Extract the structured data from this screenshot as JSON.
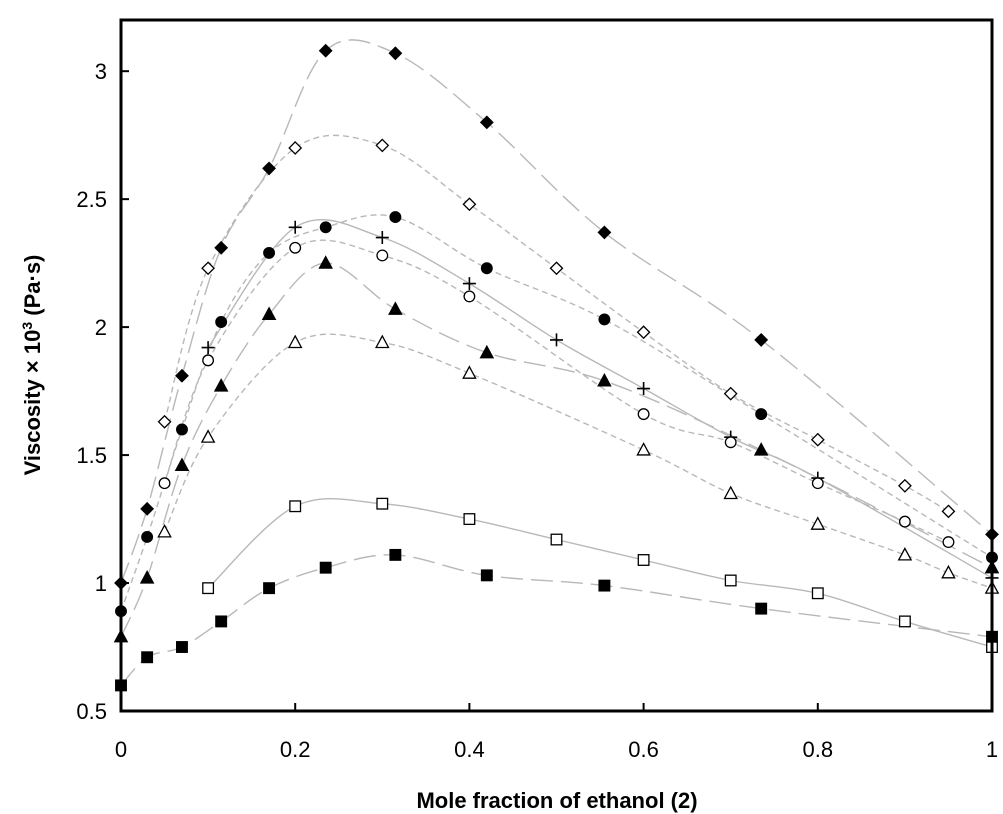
{
  "chart_data": {
    "type": "scatter",
    "title": "",
    "xlabel": "Mole fraction of ethanol (2)",
    "ylabel_main": "Viscosity × 10",
    "ylabel_sup": "3",
    "ylabel_unit": " (Pa·s)",
    "xlim": [
      0,
      1
    ],
    "ylim": [
      0.5,
      3.2
    ],
    "x_ticks": [
      0,
      0.2,
      0.4,
      0.6,
      0.8,
      1
    ],
    "x_tick_labels": [
      "0",
      "0.2",
      "0.4",
      "0.6",
      "0.8",
      "1"
    ],
    "y_ticks": [
      0.5,
      1,
      1.5,
      2,
      2.5,
      3
    ],
    "y_tick_labels": [
      "0.5",
      "1",
      "1.5",
      "2",
      "2.5",
      "3"
    ],
    "grid": false,
    "legend": "none",
    "series": [
      {
        "marker": "filled-diamond",
        "line": "long-dash",
        "x": [
          0,
          0.03,
          0.07,
          0.115,
          0.17,
          0.235,
          0.315,
          0.42,
          0.555,
          0.735,
          1
        ],
        "y": [
          1.0,
          1.29,
          1.81,
          2.31,
          2.62,
          3.08,
          3.07,
          2.8,
          2.37,
          1.95,
          1.19
        ]
      },
      {
        "marker": "open-diamond",
        "line": "short-dash",
        "x": [
          0.05,
          0.1,
          0.2,
          0.3,
          0.4,
          0.5,
          0.6,
          0.7,
          0.8,
          0.9,
          0.95
        ],
        "y": [
          1.63,
          2.23,
          2.7,
          2.71,
          2.48,
          2.23,
          1.98,
          1.74,
          1.56,
          1.38,
          1.28
        ]
      },
      {
        "marker": "filled-circle",
        "line": "short-dash",
        "x": [
          0,
          0.03,
          0.07,
          0.115,
          0.17,
          0.235,
          0.315,
          0.42,
          0.555,
          0.735,
          1
        ],
        "y": [
          0.89,
          1.18,
          1.6,
          2.02,
          2.29,
          2.39,
          2.43,
          2.23,
          2.03,
          1.66,
          1.1
        ]
      },
      {
        "marker": "plus",
        "line": "solid",
        "x": [
          0.1,
          0.2,
          0.3,
          0.4,
          0.5,
          0.6,
          0.7,
          0.8,
          1
        ],
        "y": [
          1.92,
          2.39,
          2.35,
          2.17,
          1.95,
          1.76,
          1.57,
          1.41,
          1.02
        ]
      },
      {
        "marker": "open-circle",
        "line": "short-dash",
        "x": [
          0.05,
          0.1,
          0.2,
          0.3,
          0.4,
          0.6,
          0.7,
          0.8,
          0.9,
          0.95
        ],
        "y": [
          1.39,
          1.87,
          2.31,
          2.28,
          2.12,
          1.66,
          1.55,
          1.39,
          1.24,
          1.16
        ]
      },
      {
        "marker": "filled-triangle",
        "line": "long-dash",
        "x": [
          0,
          0.03,
          0.07,
          0.115,
          0.17,
          0.235,
          0.315,
          0.42,
          0.555,
          0.735,
          1
        ],
        "y": [
          0.79,
          1.02,
          1.46,
          1.77,
          2.05,
          2.25,
          2.07,
          1.9,
          1.79,
          1.52,
          1.06
        ]
      },
      {
        "marker": "open-triangle",
        "line": "short-dash",
        "x": [
          0.05,
          0.1,
          0.2,
          0.3,
          0.4,
          0.6,
          0.7,
          0.8,
          0.9,
          0.95,
          1
        ],
        "y": [
          1.2,
          1.57,
          1.94,
          1.94,
          1.82,
          1.52,
          1.35,
          1.23,
          1.11,
          1.04,
          0.98
        ]
      },
      {
        "marker": "open-square",
        "line": "solid",
        "x": [
          0.1,
          0.2,
          0.3,
          0.4,
          0.5,
          0.6,
          0.7,
          0.8,
          0.9,
          1
        ],
        "y": [
          0.98,
          1.3,
          1.31,
          1.25,
          1.17,
          1.09,
          1.01,
          0.96,
          0.85,
          0.75
        ]
      },
      {
        "marker": "filled-square",
        "line": "long-dash",
        "x": [
          0,
          0.03,
          0.07,
          0.115,
          0.17,
          0.235,
          0.315,
          0.42,
          0.555,
          0.735,
          1
        ],
        "y": [
          0.6,
          0.71,
          0.75,
          0.85,
          0.98,
          1.06,
          1.11,
          1.03,
          0.99,
          0.9,
          0.79
        ]
      }
    ],
    "colors": {
      "marker": "#000000",
      "line": "#b8b8b8",
      "axis": "#000000"
    }
  }
}
